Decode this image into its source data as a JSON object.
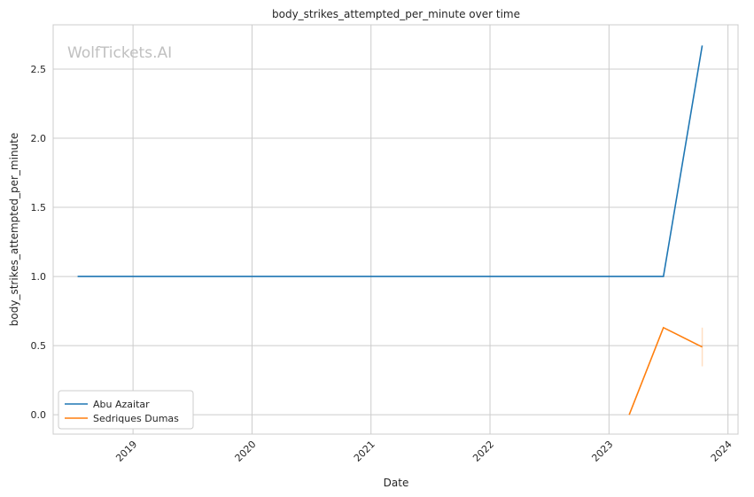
{
  "chart_data": {
    "type": "line",
    "title": "body_strikes_attempted_per_minute over time",
    "xlabel": "Date",
    "ylabel": "body_strikes_attempted_per_minute",
    "watermark": "WolfTickets.AI",
    "xlim": [
      "2018-05-01",
      "2024-02-01"
    ],
    "ylim": [
      -0.14,
      2.82
    ],
    "x_ticks": [
      "2019",
      "2020",
      "2021",
      "2022",
      "2023",
      "2024"
    ],
    "y_ticks": [
      "0.0",
      "0.5",
      "1.0",
      "1.5",
      "2.0",
      "2.5"
    ],
    "grid": true,
    "legend_placement": "lower-left",
    "series": [
      {
        "name": "Abu Azaitar",
        "color": "#1f77b4",
        "points": [
          [
            "2018-07-15",
            1.0
          ],
          [
            "2023-06-17",
            1.0
          ],
          [
            "2023-10-14",
            2.67
          ]
        ]
      },
      {
        "name": "Sedriques Dumas",
        "color": "#ff7f0e",
        "points": [
          [
            "2023-03-04",
            0.0
          ],
          [
            "2023-06-17",
            0.63
          ],
          [
            "2023-10-14",
            0.49
          ]
        ],
        "interval": {
          "x": "2023-10-14",
          "low": 0.35,
          "high": 0.63
        }
      }
    ]
  }
}
